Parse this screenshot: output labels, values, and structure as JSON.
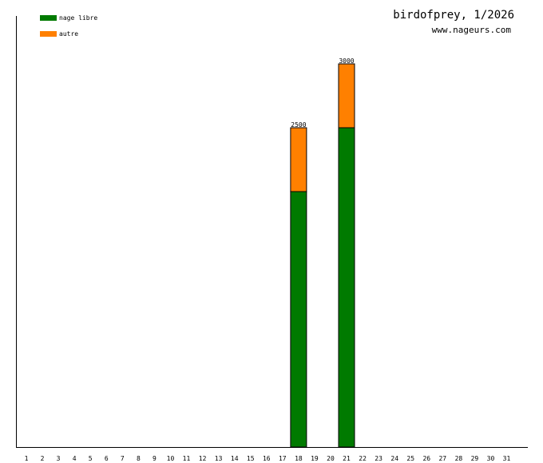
{
  "header": {
    "title": "birdofprey, 1/2026",
    "subtitle": "www.nageurs.com"
  },
  "legend": [
    {
      "label": "nage libre",
      "color": "#007a00"
    },
    {
      "label": "autre",
      "color": "#ff8000"
    }
  ],
  "chart_data": {
    "type": "bar",
    "stacked": true,
    "title": "birdofprey, 1/2026",
    "subtitle": "www.nageurs.com",
    "categories": [
      "1",
      "2",
      "3",
      "4",
      "5",
      "6",
      "7",
      "8",
      "9",
      "10",
      "11",
      "12",
      "13",
      "14",
      "15",
      "16",
      "17",
      "18",
      "19",
      "20",
      "21",
      "22",
      "23",
      "24",
      "25",
      "26",
      "27",
      "28",
      "29",
      "30",
      "31"
    ],
    "series": [
      {
        "name": "nage libre",
        "color": "#007a00",
        "values": [
          0,
          0,
          0,
          0,
          0,
          0,
          0,
          0,
          0,
          0,
          0,
          0,
          0,
          0,
          0,
          0,
          0,
          2000,
          0,
          0,
          2500,
          0,
          0,
          0,
          0,
          0,
          0,
          0,
          0,
          0,
          0
        ]
      },
      {
        "name": "autre",
        "color": "#ff8000",
        "values": [
          0,
          0,
          0,
          0,
          0,
          0,
          0,
          0,
          0,
          0,
          0,
          0,
          0,
          0,
          0,
          0,
          0,
          500,
          0,
          0,
          500,
          0,
          0,
          0,
          0,
          0,
          0,
          0,
          0,
          0,
          0
        ]
      }
    ],
    "totals": [
      {
        "category": "18",
        "label": "2500"
      },
      {
        "category": "21",
        "label": "3000"
      }
    ],
    "ylim": [
      0,
      3375
    ],
    "grid": false,
    "legend_position": "top-left"
  }
}
